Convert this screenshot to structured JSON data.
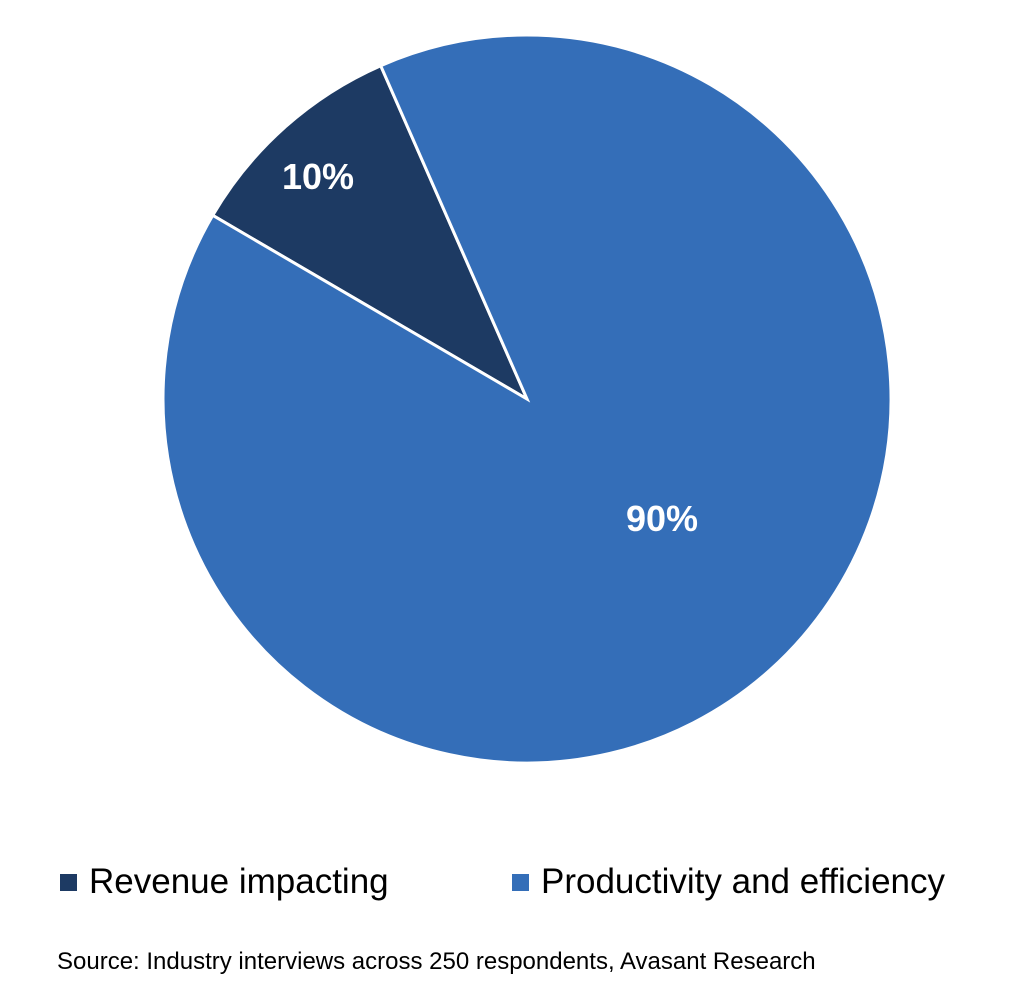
{
  "chart_data": {
    "type": "pie",
    "title": "",
    "categories": [
      "Revenue impacting",
      "Productivity and efficiency"
    ],
    "values": [
      10,
      90
    ],
    "labels": [
      "10%",
      "90%"
    ],
    "colors": [
      "#1d3a63",
      "#346eb8"
    ],
    "legend": {
      "position": "bottom",
      "entries": [
        "Revenue impacting",
        "Productivity and efficiency"
      ]
    },
    "source": "Source: Industry interviews across 250 respondents, Avasant Research"
  }
}
